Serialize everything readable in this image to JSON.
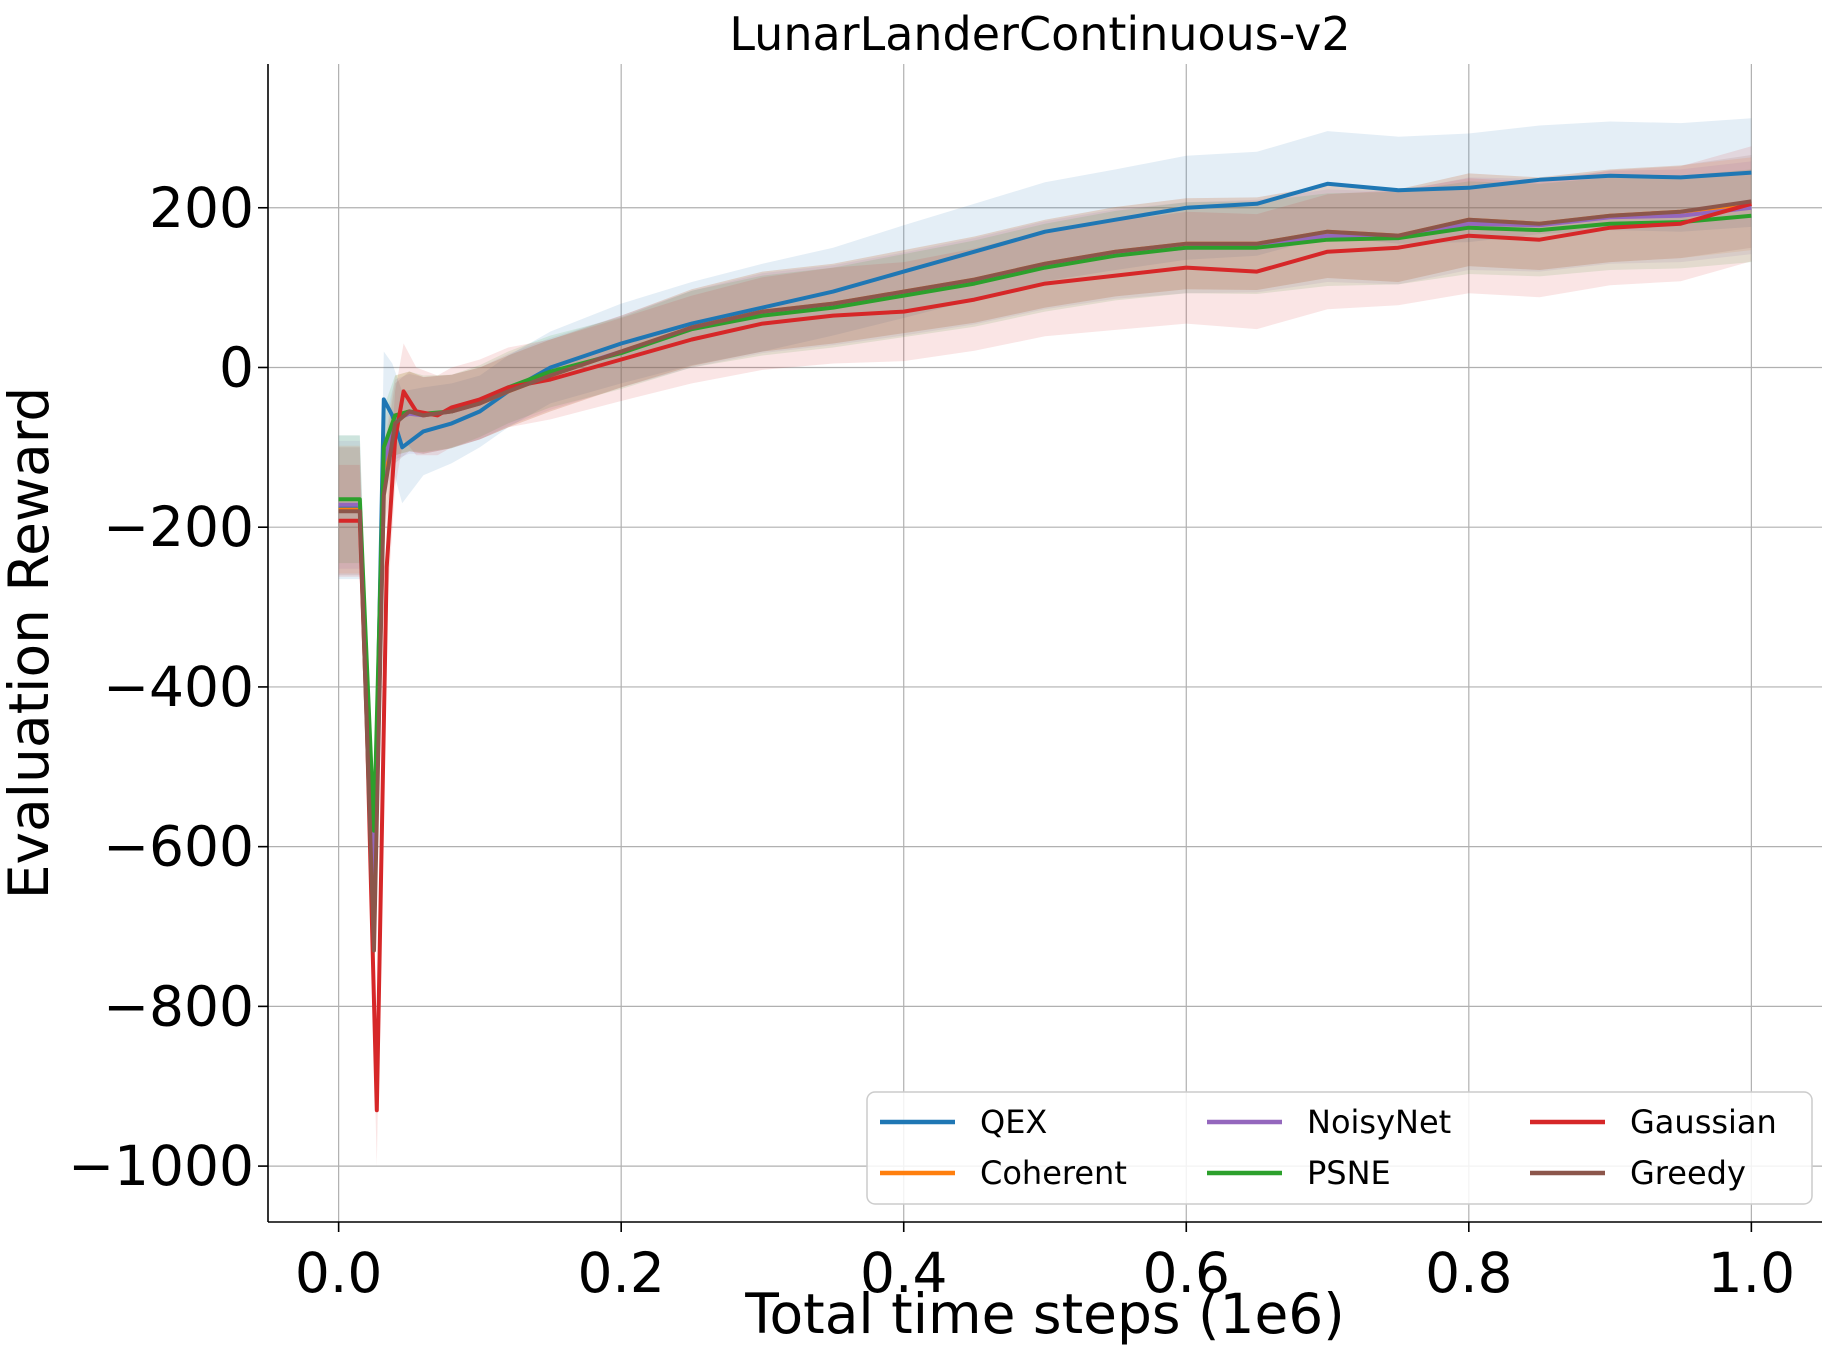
{
  "chart_data": {
    "type": "line",
    "title": "LunarLanderContinuous-v2",
    "xlabel": "Total time steps (1e6)",
    "ylabel": "Evaluation Reward",
    "xlim": [
      -0.05,
      1.05
    ],
    "ylim": [
      -1070,
      380
    ],
    "x_ticks": [
      0.0,
      0.2,
      0.4,
      0.6,
      0.8,
      1.0
    ],
    "x_tick_labels": [
      "0.0",
      "0.2",
      "0.4",
      "0.6",
      "0.8",
      "1.0"
    ],
    "y_ticks": [
      -1000,
      -800,
      -600,
      -400,
      -200,
      0,
      200
    ],
    "y_tick_labels": [
      "−1000",
      "−800",
      "−600",
      "−400",
      "−200",
      "0",
      "200"
    ],
    "grid": true,
    "legend_position": "lower-right",
    "legend_columns": 3,
    "series": [
      {
        "name": "QEX",
        "color": "#1f77b4",
        "x": [
          0.0,
          0.015,
          0.025,
          0.032,
          0.038,
          0.045,
          0.06,
          0.08,
          0.1,
          0.12,
          0.15,
          0.2,
          0.25,
          0.3,
          0.35,
          0.4,
          0.45,
          0.5,
          0.55,
          0.6,
          0.65,
          0.7,
          0.75,
          0.8,
          0.85,
          0.9,
          0.95,
          1.0
        ],
        "y": [
          -175,
          -175,
          -650,
          -40,
          -60,
          -100,
          -80,
          -70,
          -55,
          -30,
          0,
          30,
          55,
          75,
          95,
          120,
          145,
          170,
          185,
          200,
          205,
          230,
          222,
          225,
          235,
          240,
          238,
          244
        ],
        "band": [
          90,
          90,
          20,
          60,
          65,
          70,
          55,
          50,
          45,
          45,
          45,
          50,
          52,
          55,
          55,
          58,
          60,
          62,
          63,
          65,
          65,
          66,
          67,
          68,
          68,
          68,
          68,
          68
        ]
      },
      {
        "name": "Coherent",
        "color": "#ff7f0e",
        "x": [
          0.0,
          0.015,
          0.025,
          0.032,
          0.04,
          0.05,
          0.06,
          0.08,
          0.1,
          0.12,
          0.15,
          0.2,
          0.25,
          0.3,
          0.35,
          0.4,
          0.45,
          0.5,
          0.55,
          0.6,
          0.65,
          0.7,
          0.75,
          0.8,
          0.85,
          0.9,
          0.95,
          1.0
        ],
        "y": [
          -178,
          -178,
          -700,
          -150,
          -60,
          -55,
          -60,
          -55,
          -45,
          -30,
          -10,
          20,
          50,
          70,
          80,
          95,
          110,
          130,
          145,
          155,
          155,
          170,
          165,
          185,
          180,
          190,
          195,
          205
        ],
        "band": [
          80,
          80,
          20,
          50,
          50,
          50,
          48,
          46,
          45,
          45,
          45,
          45,
          48,
          50,
          50,
          52,
          54,
          55,
          56,
          57,
          58,
          58,
          58,
          58,
          58,
          58,
          58,
          58
        ]
      },
      {
        "name": "NoisyNet",
        "color": "#9467bd",
        "x": [
          0.0,
          0.015,
          0.025,
          0.032,
          0.04,
          0.05,
          0.06,
          0.08,
          0.1,
          0.12,
          0.15,
          0.2,
          0.25,
          0.3,
          0.35,
          0.4,
          0.45,
          0.5,
          0.55,
          0.6,
          0.65,
          0.7,
          0.75,
          0.8,
          0.85,
          0.9,
          0.95,
          1.0
        ],
        "y": [
          -172,
          -172,
          -640,
          -120,
          -65,
          -58,
          -60,
          -55,
          -45,
          -28,
          -8,
          20,
          48,
          68,
          78,
          92,
          108,
          128,
          142,
          150,
          152,
          165,
          162,
          180,
          178,
          188,
          190,
          200
        ],
        "band": [
          80,
          80,
          20,
          50,
          50,
          50,
          48,
          46,
          45,
          45,
          45,
          45,
          48,
          50,
          50,
          52,
          54,
          55,
          56,
          57,
          58,
          58,
          58,
          58,
          58,
          58,
          58,
          58
        ]
      },
      {
        "name": "PSNE",
        "color": "#2ca02c",
        "x": [
          0.0,
          0.015,
          0.025,
          0.032,
          0.04,
          0.05,
          0.06,
          0.08,
          0.1,
          0.12,
          0.15,
          0.2,
          0.25,
          0.3,
          0.35,
          0.4,
          0.45,
          0.5,
          0.55,
          0.6,
          0.65,
          0.7,
          0.75,
          0.8,
          0.85,
          0.9,
          0.95,
          1.0
        ],
        "y": [
          -165,
          -165,
          -580,
          -100,
          -60,
          -55,
          -58,
          -55,
          -42,
          -25,
          -5,
          18,
          48,
          65,
          75,
          90,
          105,
          125,
          140,
          150,
          150,
          160,
          162,
          175,
          172,
          180,
          182,
          190
        ],
        "band": [
          80,
          80,
          20,
          50,
          50,
          50,
          48,
          46,
          45,
          45,
          45,
          45,
          48,
          50,
          50,
          52,
          54,
          55,
          56,
          57,
          58,
          58,
          58,
          58,
          58,
          58,
          58,
          58
        ]
      },
      {
        "name": "Gaussian",
        "color": "#d62728",
        "x": [
          0.0,
          0.015,
          0.02,
          0.027,
          0.034,
          0.04,
          0.046,
          0.055,
          0.07,
          0.08,
          0.1,
          0.12,
          0.15,
          0.2,
          0.25,
          0.3,
          0.35,
          0.4,
          0.45,
          0.5,
          0.55,
          0.6,
          0.65,
          0.7,
          0.75,
          0.8,
          0.85,
          0.9,
          0.95,
          1.0
        ],
        "y": [
          -192,
          -192,
          -450,
          -930,
          -250,
          -90,
          -30,
          -55,
          -60,
          -50,
          -40,
          -25,
          -15,
          10,
          35,
          55,
          65,
          70,
          85,
          105,
          115,
          125,
          120,
          145,
          150,
          165,
          160,
          175,
          180,
          205
        ],
        "band": [
          70,
          70,
          40,
          70,
          60,
          60,
          60,
          55,
          50,
          50,
          50,
          50,
          50,
          52,
          55,
          58,
          60,
          62,
          64,
          66,
          68,
          70,
          72,
          72,
          72,
          72,
          72,
          72,
          72,
          72
        ]
      },
      {
        "name": "Greedy",
        "color": "#8c564b",
        "x": [
          0.0,
          0.015,
          0.025,
          0.032,
          0.04,
          0.05,
          0.06,
          0.08,
          0.1,
          0.12,
          0.15,
          0.2,
          0.25,
          0.3,
          0.35,
          0.4,
          0.45,
          0.5,
          0.55,
          0.6,
          0.65,
          0.7,
          0.75,
          0.8,
          0.85,
          0.9,
          0.95,
          1.0
        ],
        "y": [
          -180,
          -180,
          -730,
          -160,
          -70,
          -55,
          -60,
          -55,
          -45,
          -30,
          -10,
          20,
          50,
          70,
          80,
          95,
          110,
          130,
          145,
          155,
          155,
          170,
          165,
          185,
          180,
          190,
          195,
          208
        ],
        "band": [
          80,
          80,
          20,
          50,
          50,
          50,
          48,
          46,
          45,
          45,
          45,
          45,
          48,
          50,
          50,
          52,
          54,
          55,
          56,
          57,
          58,
          58,
          58,
          58,
          58,
          58,
          58,
          58
        ]
      }
    ]
  }
}
